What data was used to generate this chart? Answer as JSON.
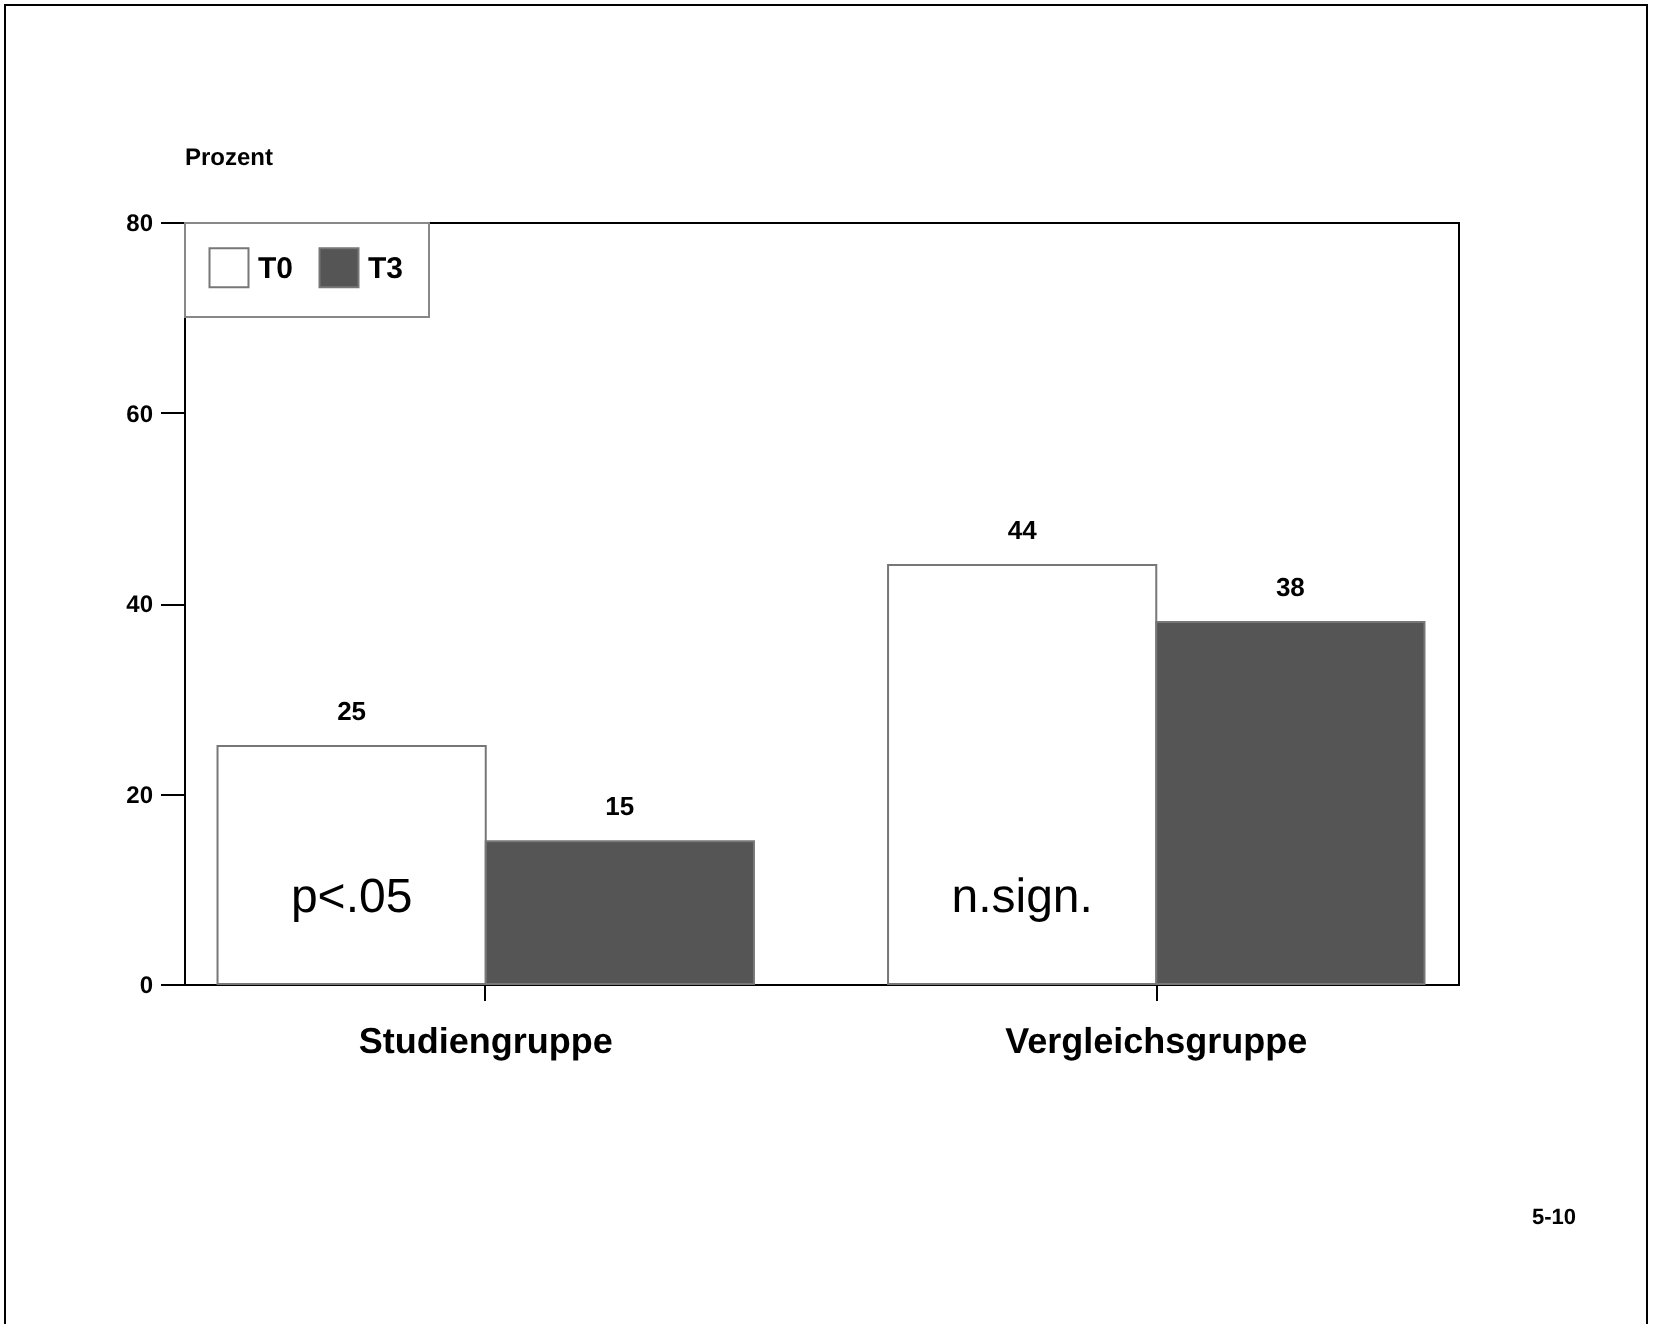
{
  "chart_data": {
    "type": "bar",
    "ylabel": "Prozent",
    "categories": [
      "Studiengruppe",
      "Vergleichsgruppe"
    ],
    "series": [
      {
        "name": "T0",
        "color": "#ffffff",
        "values": [
          25,
          44
        ]
      },
      {
        "name": "T3",
        "color": "#555555",
        "values": [
          15,
          38
        ]
      }
    ],
    "ylim": [
      0,
      80
    ],
    "yticks": [
      0,
      20,
      40,
      60,
      80
    ],
    "grid": false,
    "legend": "top left",
    "data_labels": true,
    "annotations": [
      {
        "text": "p<.05",
        "x": "Studiengruppe",
        "y": 9
      },
      {
        "text": "n.sign.",
        "x": "Vergleichsgruppe",
        "y": 9
      },
      "5-10"
    ]
  }
}
